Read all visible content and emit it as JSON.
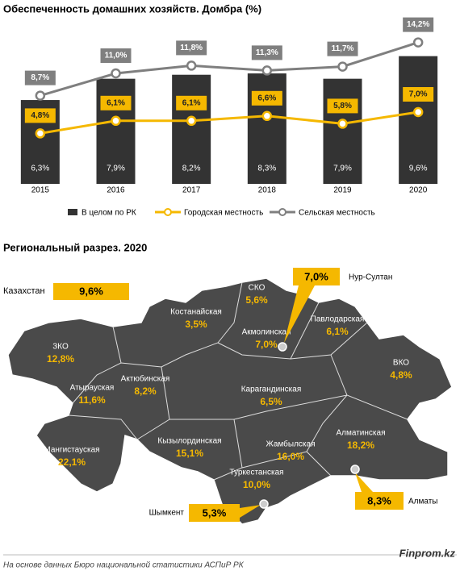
{
  "chart_data": {
    "type": "bar-line",
    "title": "Обеспеченность домашних хозяйств. Домбра (%)",
    "categories": [
      "2015",
      "2016",
      "2017",
      "2018",
      "2019",
      "2020"
    ],
    "ylim": [
      0,
      10
    ],
    "y2lim": [
      0,
      14
    ],
    "series": [
      {
        "name": "В целом по РК",
        "type": "bar",
        "color": "#333333",
        "values": [
          6.3,
          7.9,
          8.2,
          8.3,
          7.9,
          9.6
        ],
        "value_labels": [
          "6,3%",
          "7,9%",
          "8,2%",
          "8,3%",
          "7,9%",
          "9,6%"
        ]
      },
      {
        "name": "Городская местность",
        "type": "line",
        "axis": "y2",
        "color": "#f5b800",
        "values": [
          4.8,
          6.1,
          6.1,
          6.6,
          5.8,
          7.0
        ],
        "value_labels": [
          "4,8%",
          "6,1%",
          "6,1%",
          "6,6%",
          "5,8%",
          "7,0%"
        ]
      },
      {
        "name": "Сельская местность",
        "type": "line",
        "axis": "y2",
        "color": "#7f7f7f",
        "values": [
          8.7,
          11.0,
          11.8,
          11.3,
          11.7,
          14.2
        ],
        "value_labels": [
          "8,7%",
          "11,0%",
          "11,8%",
          "11,3%",
          "11,7%",
          "14,2%"
        ]
      }
    ]
  },
  "map": {
    "title": "Региональный разрез. 2020",
    "country": {
      "name": "Казахстан",
      "value": "9,6%"
    },
    "cities": [
      {
        "name": "Нур-Султан",
        "value": "7,0%"
      },
      {
        "name": "Алматы",
        "value": "8,3%"
      },
      {
        "name": "Шымкент",
        "value": "5,3%"
      }
    ],
    "regions": [
      {
        "name": "СКО",
        "value": "5,6%"
      },
      {
        "name": "Костанайская",
        "value": "3,5%"
      },
      {
        "name": "Акмолинская",
        "value": "7,0%"
      },
      {
        "name": "Павлодарская",
        "value": "6,1%"
      },
      {
        "name": "ВКО",
        "value": "4,8%"
      },
      {
        "name": "ЗКО",
        "value": "12,8%"
      },
      {
        "name": "Актюбинская",
        "value": "8,2%"
      },
      {
        "name": "Карагандинская",
        "value": "6,5%"
      },
      {
        "name": "Атырауская",
        "value": "11,6%"
      },
      {
        "name": "Алматинская",
        "value": "18,2%"
      },
      {
        "name": "Мангистауская",
        "value": "22,1%"
      },
      {
        "name": "Кызылординская",
        "value": "15,1%"
      },
      {
        "name": "Жамбылская",
        "value": "16,0%"
      },
      {
        "name": "Туркестанская",
        "value": "10,0%"
      }
    ]
  },
  "footer": {
    "source": "На основе данных Бюро национальной статистики АСПиР РК",
    "brand": "Finprom.kz"
  }
}
